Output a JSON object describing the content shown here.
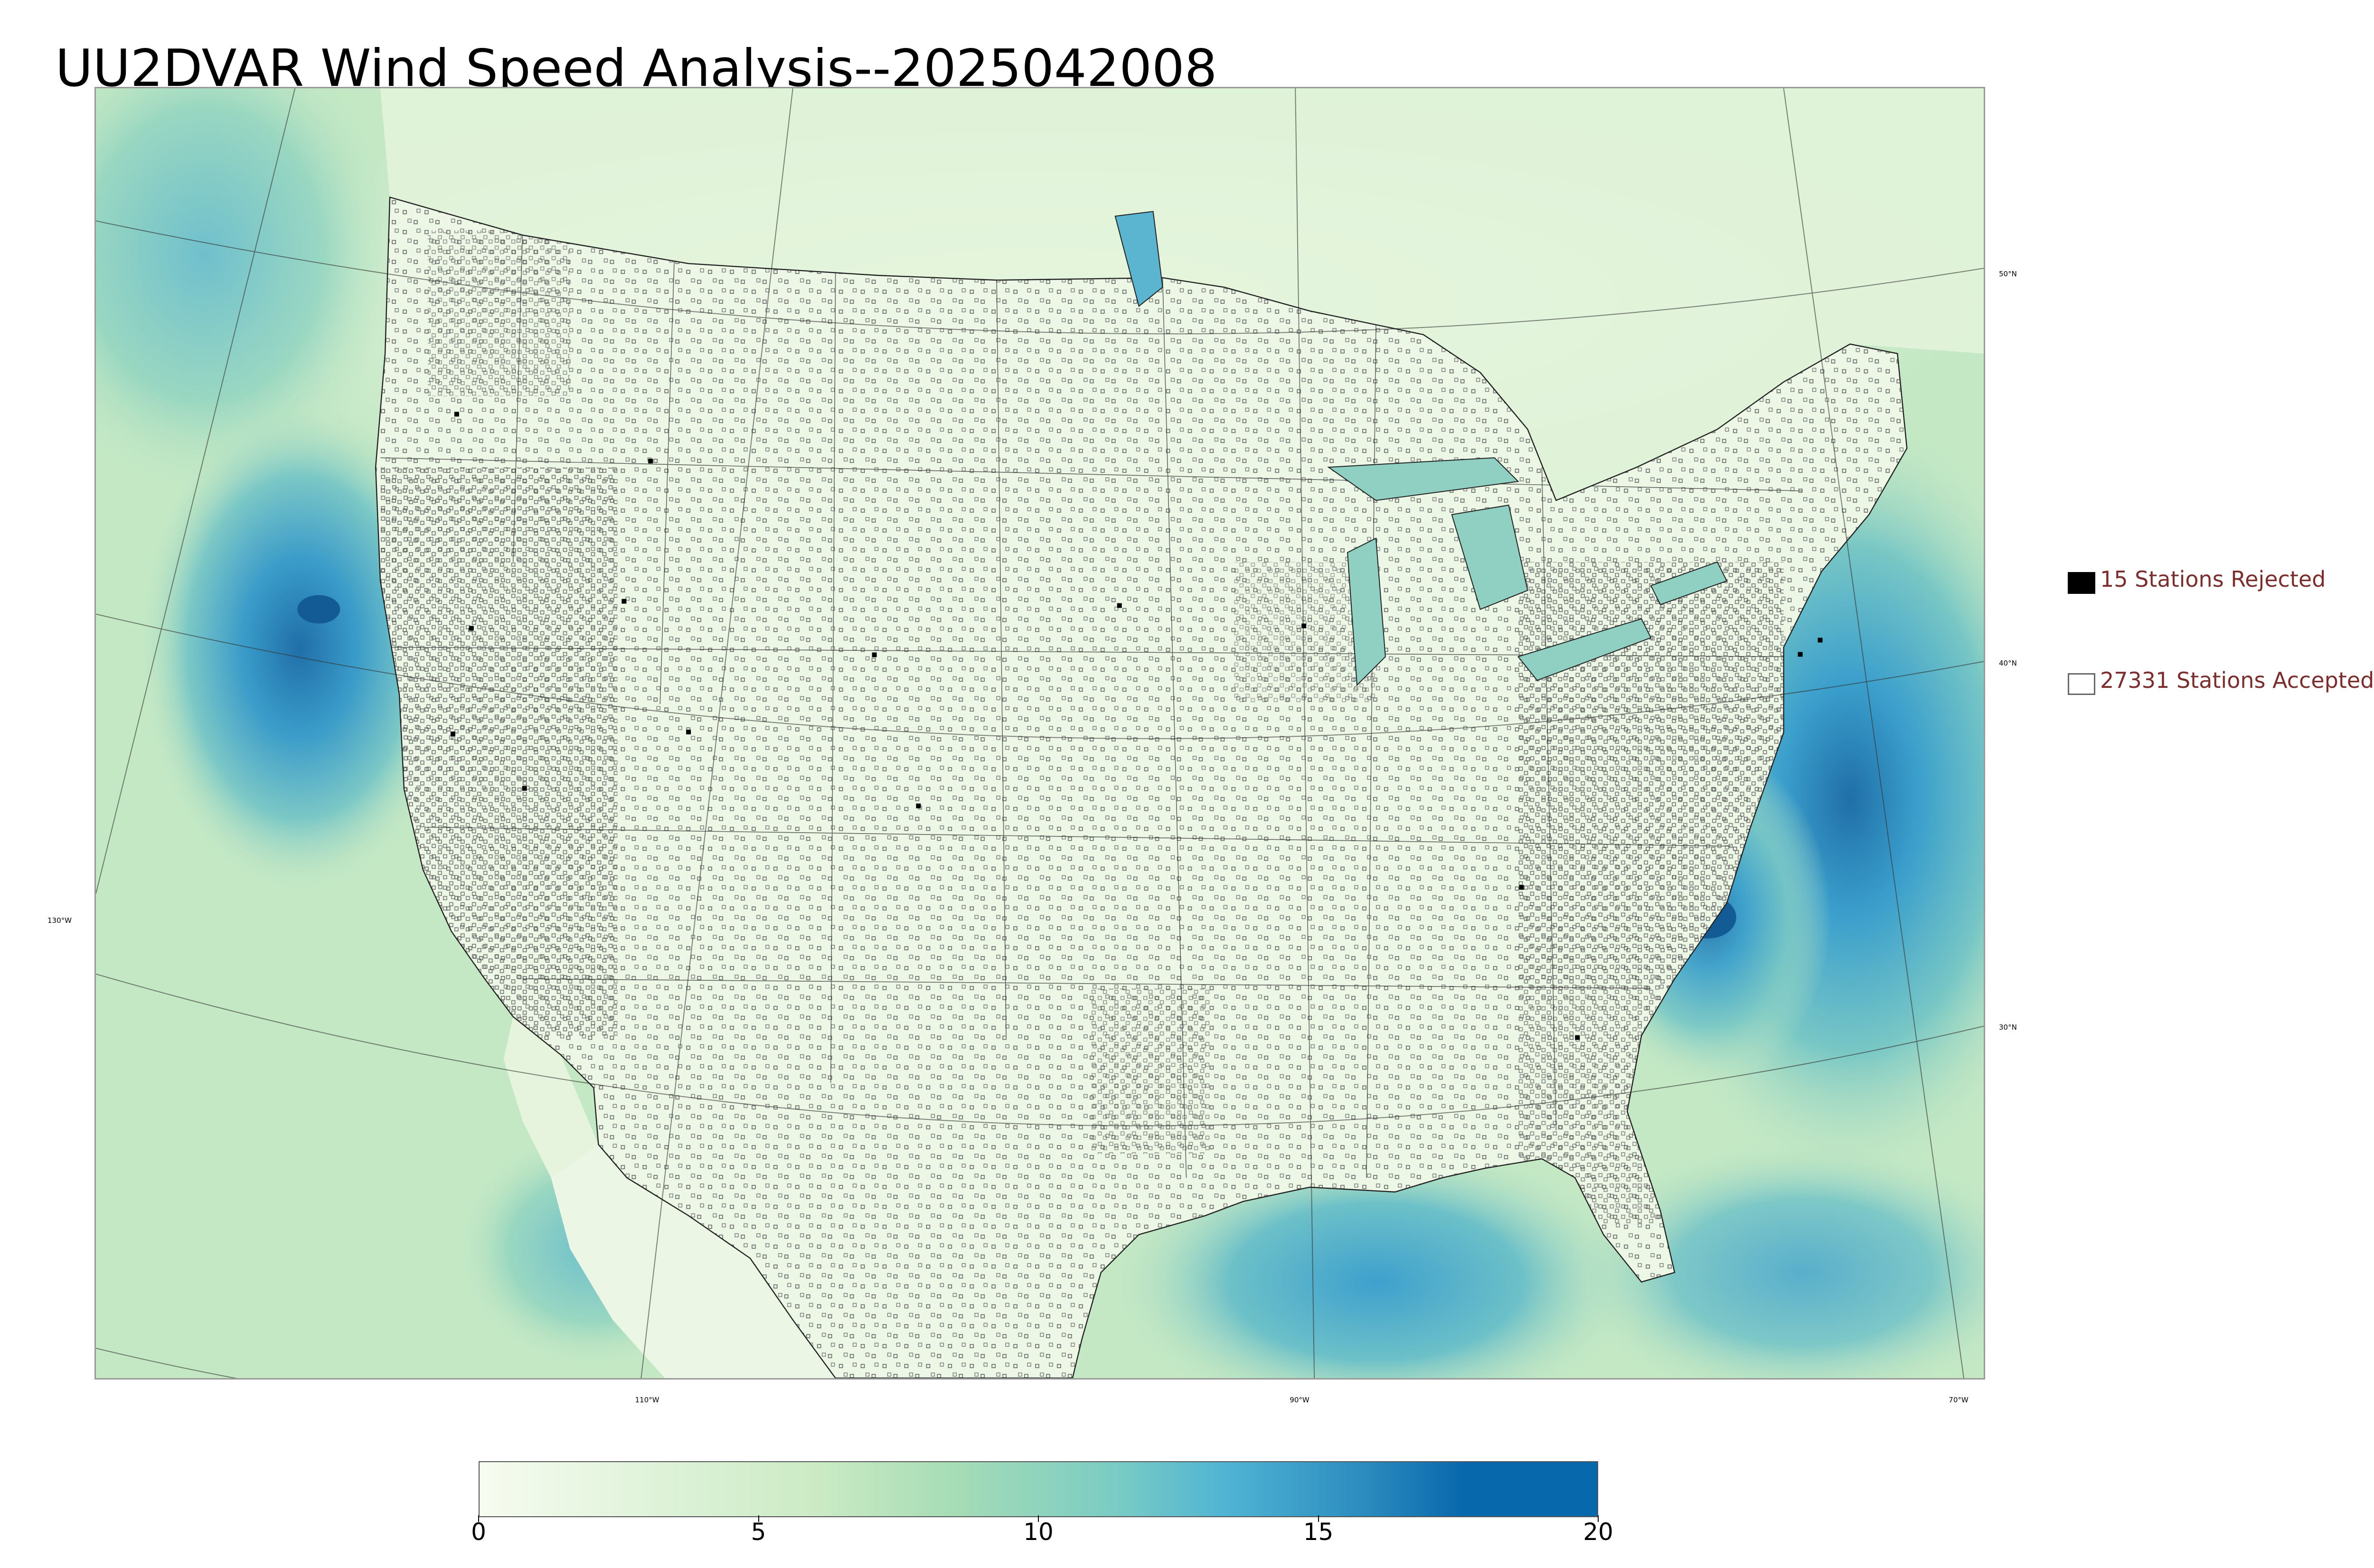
{
  "title": "UU2DVAR Wind Speed Analysis--2025042008",
  "legend": {
    "rejected": {
      "label": "15 Stations Rejected",
      "color": "#000000"
    },
    "accepted": {
      "label": "27331 Stations Accepted",
      "color": "#ffffff"
    }
  },
  "graticule": {
    "longitude_labels": [
      "110°W",
      "90°W",
      "70°W"
    ],
    "latitude_labels_right": [
      "50°N",
      "40°N",
      "30°N"
    ],
    "latitude_labels_left": [
      "130°W"
    ]
  },
  "colorbar": {
    "ticks": [
      "0",
      "5",
      "10",
      "15",
      "20"
    ],
    "range": [
      0,
      20
    ],
    "colors": [
      "#f7fcf0",
      "#e0f3db",
      "#ccebc5",
      "#a8ddb5",
      "#7bccc4",
      "#4eb3d3",
      "#2b8cbe",
      "#0868ac"
    ]
  }
}
